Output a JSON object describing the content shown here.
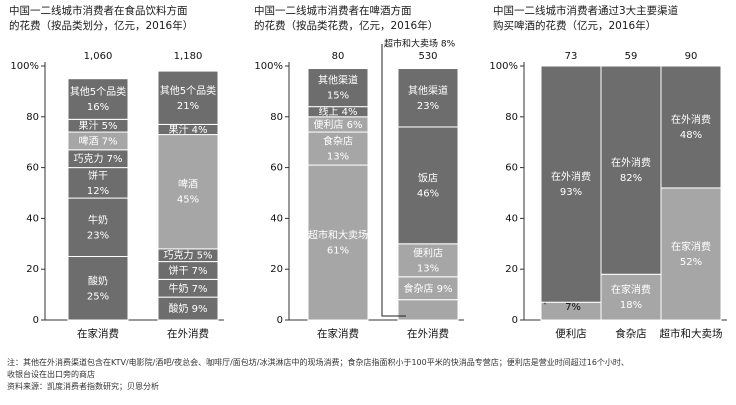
{
  "chart_data": [
    {
      "type": "bar",
      "stacked": true,
      "title_line1": "中国一二线城市消费者在食品饮料方面",
      "title_line2": "的花费（按品类划分，亿元，2016年）",
      "ylim": [
        0,
        100
      ],
      "yticks": [
        "0",
        "20",
        "40",
        "60",
        "80",
        "100%"
      ],
      "categories": [
        "在家消费",
        "在外消费"
      ],
      "totals": [
        "1,060",
        "1,180"
      ],
      "stacks": [
        [
          {
            "label": "酸奶 25%",
            "value": 25,
            "color": "#6d6d6d"
          },
          {
            "label": "牛奶 23%",
            "value": 23,
            "color": "#6d6d6d"
          },
          {
            "label": "饼干 12%",
            "value": 12,
            "color": "#6d6d6d"
          },
          {
            "label": "巧克力 7%",
            "value": 7,
            "color": "#6d6d6d"
          },
          {
            "label": "啤酒 7%",
            "value": 7,
            "color": "#a6a6a6"
          },
          {
            "label": "果汁 5%",
            "value": 5,
            "color": "#6d6d6d"
          },
          {
            "label": "其他5个品类 16%",
            "value": 16,
            "color": "#6d6d6d"
          }
        ],
        [
          {
            "label": "酸奶 9%",
            "value": 9,
            "color": "#6d6d6d"
          },
          {
            "label": "牛奶 7%",
            "value": 7,
            "color": "#6d6d6d"
          },
          {
            "label": "饼干 7%",
            "value": 7,
            "color": "#6d6d6d"
          },
          {
            "label": "巧克力 5%",
            "value": 5,
            "color": "#6d6d6d"
          },
          {
            "label": "啤酒 45%",
            "value": 45,
            "color": "#a6a6a6"
          },
          {
            "label": "果汁 4%",
            "value": 4,
            "color": "#6d6d6d"
          },
          {
            "label": "其他5个品类 21%",
            "value": 21,
            "color": "#6d6d6d"
          }
        ]
      ]
    },
    {
      "type": "bar",
      "stacked": true,
      "title_line1": "中国一二线城市消费者在啤酒方面",
      "title_line2": "的花费（按品类花费，亿元，2016年）",
      "ylim": [
        0,
        100
      ],
      "yticks": [
        "0",
        "20",
        "40",
        "60",
        "80",
        "100%"
      ],
      "categories": [
        "在家消费",
        "在外消费"
      ],
      "totals": [
        "80",
        "530"
      ],
      "stacks": [
        [
          {
            "label": "超市和大卖场 61%",
            "value": 61,
            "color": "#a6a6a6"
          },
          {
            "label": "食杂店 13%",
            "value": 13,
            "color": "#a6a6a6"
          },
          {
            "label": "便利店 6%",
            "value": 6,
            "color": "#a6a6a6"
          },
          {
            "label": "线上 4%",
            "value": 4,
            "color": "#6d6d6d"
          },
          {
            "label": "其他渠道 15%",
            "value": 15,
            "color": "#6d6d6d"
          }
        ],
        [
          {
            "label": "超市和大卖场 8%",
            "value": 8,
            "color": "#a6a6a6"
          },
          {
            "label": "食杂店 9%",
            "value": 9,
            "color": "#a6a6a6"
          },
          {
            "label": "便利店 13%",
            "value": 13,
            "color": "#a6a6a6"
          },
          {
            "label": "饭店 46%",
            "value": 46,
            "color": "#6d6d6d"
          },
          {
            "label": "其他渠道 23%",
            "value": 23,
            "color": "#6d6d6d"
          }
        ]
      ]
    },
    {
      "type": "bar",
      "stacked": true,
      "title_line1": "中国一二线城市消费者通过3大主要渠道",
      "title_line2": "购买啤酒的花费（亿元，2016年）",
      "ylim": [
        0,
        100
      ],
      "yticks": [
        "0",
        "20",
        "40",
        "60",
        "80",
        "100%"
      ],
      "categories": [
        "便利店",
        "食杂店",
        "超市和大卖场"
      ],
      "totals": [
        "73",
        "59",
        "90"
      ],
      "stacks": [
        [
          {
            "label": "在家消费 7%",
            "value": 7,
            "color": "#a6a6a6"
          },
          {
            "label": "在外消费 93%",
            "value": 93,
            "color": "#6d6d6d"
          }
        ],
        [
          {
            "label": "在家消费 18%",
            "value": 18,
            "color": "#a6a6a6"
          },
          {
            "label": "在外消费 82%",
            "value": 82,
            "color": "#6d6d6d"
          }
        ],
        [
          {
            "label": "在家消费 52%",
            "value": 52,
            "color": "#a6a6a6"
          },
          {
            "label": "在外消费 48%",
            "value": 48,
            "color": "#6d6d6d"
          }
        ]
      ]
    }
  ],
  "notes": {
    "line1": "注：其他在外消费渠道包含在KTV/电影院/酒吧/夜总会、咖啡厅/面包坊/冰淇淋店中的现场消费；食杂店指面积小于100平米的快消品专营店；便利店是营业时间超过16个小时、",
    "line2": "收银台设在出口旁的商店",
    "source": "资料来源：凯度消费者指数研究；贝恩分析"
  }
}
